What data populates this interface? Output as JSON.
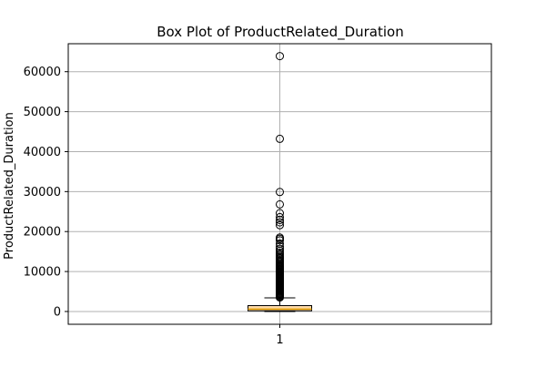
{
  "chart_data": {
    "type": "box",
    "title": "Box Plot of ProductRelated_Duration",
    "xlabel": "",
    "ylabel": "ProductRelated_Duration",
    "categories": [
      "1"
    ],
    "ylim": [
      -3200,
      67000
    ],
    "yticks": [
      0,
      10000,
      20000,
      30000,
      40000,
      50000,
      60000
    ],
    "ytick_labels": [
      "0",
      "10000",
      "20000",
      "30000",
      "40000",
      "50000",
      "60000"
    ],
    "grid": true,
    "box": {
      "min": 0,
      "q1": 185,
      "median": 600,
      "q3": 1470,
      "whisker_high": 3400
    },
    "outliers": [
      3500,
      3700,
      3900,
      4100,
      4300,
      4500,
      4700,
      4900,
      5100,
      5300,
      5500,
      5700,
      5900,
      6100,
      6300,
      6500,
      6700,
      6900,
      7100,
      7300,
      7500,
      7700,
      7900,
      8100,
      8300,
      8500,
      8700,
      8900,
      9100,
      9300,
      9500,
      9700,
      9900,
      10100,
      10300,
      10500,
      10700,
      10900,
      11100,
      11300,
      11500,
      11800,
      12100,
      12400,
      12700,
      13000,
      13300,
      13600,
      13900,
      14300,
      14700,
      15200,
      15700,
      16300,
      17000,
      17800,
      18200,
      18500,
      21600,
      22300,
      22900,
      23600,
      24600,
      26800,
      29900,
      43200,
      63900
    ],
    "colors": {
      "box_fill": "#fcd9a8",
      "median": "#e8a000",
      "grid": "#b0b0b0",
      "axis": "#000000"
    }
  }
}
